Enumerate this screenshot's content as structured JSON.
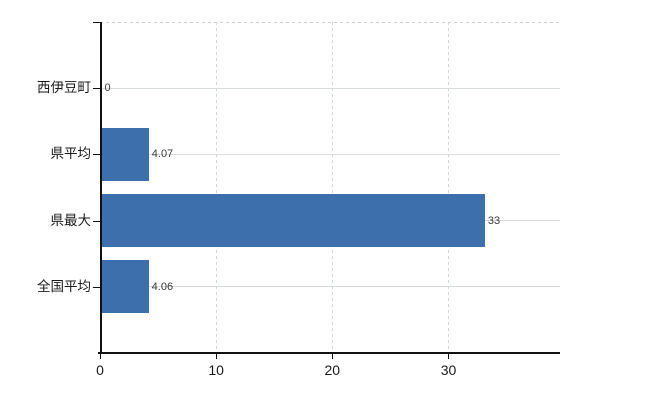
{
  "chart_data": {
    "type": "bar",
    "orientation": "horizontal",
    "title": "",
    "xlabel": "",
    "ylabel": "",
    "categories": [
      "西伊豆町",
      "県平均",
      "県最大",
      "全国平均"
    ],
    "values": [
      0,
      4.07,
      33,
      4.06
    ],
    "value_labels": [
      "0",
      "4.07",
      "33",
      "4.06"
    ],
    "x_tick_labels": [
      "0",
      "10",
      "20",
      "30"
    ],
    "x_tick_values": [
      0,
      10,
      20,
      30
    ],
    "xlim": [
      0,
      39.6
    ],
    "grid": true,
    "legend_position": "none",
    "colors": {
      "bar": "#3e6fad",
      "grid_solid": "#d7ddd7",
      "grid_dashed": "#cfd5cf",
      "axis": "#111111",
      "category_label": "#1a1a1a",
      "value_label": "#3a3a3a",
      "background": "#ffffff"
    }
  }
}
